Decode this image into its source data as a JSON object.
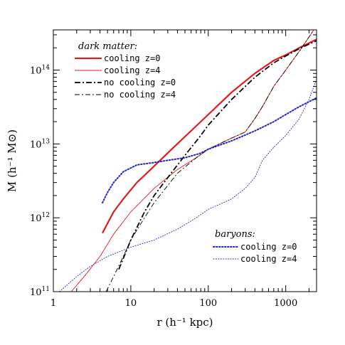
{
  "chart_data": {
    "type": "line",
    "xscale": "log",
    "yscale": "log",
    "xlim": [
      1,
      2500
    ],
    "ylim": [
      100000000000.0,
      350000000000000.0
    ],
    "xlabel": "r (h⁻¹ kpc)",
    "ylabel": "M (h⁻¹ M⊙)",
    "x_ticks": [
      {
        "value": 1,
        "label": "1"
      },
      {
        "value": 10,
        "label": "10"
      },
      {
        "value": 100,
        "label": "100"
      },
      {
        "value": 1000,
        "label": "1000"
      }
    ],
    "y_ticks": [
      {
        "value": 100000000000.0,
        "base": "10",
        "exp": "11"
      },
      {
        "value": 1000000000000.0,
        "base": "10",
        "exp": "12"
      },
      {
        "value": 10000000000000.0,
        "base": "10",
        "exp": "13"
      },
      {
        "value": 100000000000000.0,
        "base": "10",
        "exp": "14"
      }
    ],
    "legend_groups": [
      {
        "heading": "dark matter:",
        "placement": "top-left",
        "entries": [
          0,
          1,
          2,
          3
        ]
      },
      {
        "heading": "baryons:",
        "placement": "bottom-right",
        "entries": [
          4,
          5
        ]
      }
    ],
    "series": [
      {
        "name": "cooling z=0",
        "color": "#e41a1c",
        "dash": "solid",
        "width": 2.2,
        "x": [
          4.3,
          6,
          8,
          12,
          20,
          35,
          60,
          100,
          200,
          400,
          700,
          1000,
          1500,
          2500
        ],
        "y": [
          620000000000.0,
          1200000000000.0,
          1800000000000.0,
          3000000000000.0,
          5000000000000.0,
          8800000000000.0,
          15000000000000.0,
          25000000000000.0,
          50000000000000.0,
          90000000000000.0,
          135000000000000.0,
          160000000000000.0,
          200000000000000.0,
          260000000000000.0
        ]
      },
      {
        "name": "cooling z=4",
        "color": "#e41a1c",
        "dash": "solid",
        "width": 0.9,
        "x": [
          1.7,
          2.5,
          4,
          6,
          10,
          20,
          40,
          70,
          100,
          200,
          300,
          400,
          500,
          700,
          1000,
          1500,
          2000,
          2500
        ],
        "y": [
          100000000000.0,
          160000000000.0,
          300000000000.0,
          600000000000.0,
          1200000000000.0,
          2500000000000.0,
          4500000000000.0,
          6500000000000.0,
          8500000000000.0,
          12000000000000.0,
          14500000000000.0,
          22000000000000.0,
          32000000000000.0,
          60000000000000.0,
          100000000000000.0,
          180000000000000.0,
          280000000000000.0,
          400000000000000.0
        ]
      },
      {
        "name": "no cooling z=0",
        "color": "#000000",
        "dash": "dashdot",
        "width": 1.8,
        "x": [
          7,
          10,
          15,
          20,
          30,
          50,
          80,
          100,
          200,
          400,
          700,
          1000,
          1500,
          2500
        ],
        "y": [
          200000000000.0,
          500000000000.0,
          1200000000000.0,
          2000000000000.0,
          3500000000000.0,
          7000000000000.0,
          13000000000000.0,
          18000000000000.0,
          40000000000000.0,
          80000000000000.0,
          125000000000000.0,
          155000000000000.0,
          195000000000000.0,
          250000000000000.0
        ]
      },
      {
        "name": "no cooling z=4",
        "color": "#000000",
        "dash": "dashdot-thin",
        "width": 0.9,
        "x": [
          4.8,
          6,
          8,
          10,
          15,
          20,
          40,
          70,
          100,
          200,
          300,
          400,
          500,
          700,
          1000,
          1500,
          2000,
          2500
        ],
        "y": [
          100000000000.0,
          160000000000.0,
          300000000000.0,
          500000000000.0,
          1000000000000.0,
          1600000000000.0,
          4000000000000.0,
          6500000000000.0,
          8500000000000.0,
          12000000000000.0,
          14500000000000.0,
          22000000000000.0,
          32000000000000.0,
          60000000000000.0,
          100000000000000.0,
          180000000000000.0,
          280000000000000.0,
          400000000000000.0
        ]
      },
      {
        "name": "cooling z=0",
        "color": "#2222cc",
        "dash": "dotted",
        "width": 2.0,
        "x": [
          4.3,
          5,
          6,
          8,
          12,
          20,
          30,
          50,
          80,
          100,
          200,
          400,
          700,
          1000,
          1500,
          2500
        ],
        "y": [
          1600000000000.0,
          2200000000000.0,
          3000000000000.0,
          4200000000000.0,
          5200000000000.0,
          5600000000000.0,
          6000000000000.0,
          6500000000000.0,
          7500000000000.0,
          8500000000000.0,
          11000000000000.0,
          15000000000000.0,
          20000000000000.0,
          25000000000000.0,
          32000000000000.0,
          42000000000000.0
        ]
      },
      {
        "name": "cooling z=4",
        "color": "#2222cc",
        "dash": "dotted-thin",
        "width": 0.9,
        "x": [
          1.2,
          2,
          3,
          5,
          10,
          20,
          40,
          70,
          100,
          200,
          300,
          400,
          500,
          700,
          1000,
          1500,
          2000,
          2500
        ],
        "y": [
          100000000000.0,
          160000000000.0,
          220000000000.0,
          300000000000.0,
          400000000000.0,
          500000000000.0,
          700000000000.0,
          1000000000000.0,
          1300000000000.0,
          1800000000000.0,
          2500000000000.0,
          3500000000000.0,
          6000000000000.0,
          9000000000000.0,
          13000000000000.0,
          22000000000000.0,
          40000000000000.0,
          75000000000000.0
        ]
      }
    ]
  }
}
